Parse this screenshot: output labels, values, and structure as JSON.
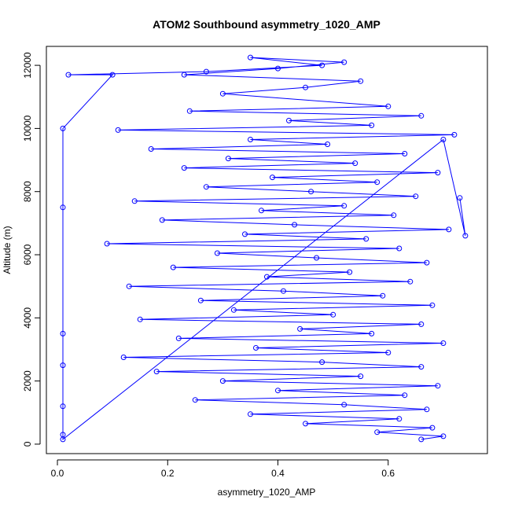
{
  "chart_data": {
    "type": "scatter",
    "title": "ATOM2 Southbound asymmetry_1020_AMP",
    "xlabel": "asymmetry_1020_AMP",
    "ylabel": "Altitude (m)",
    "xlim": [
      -0.02,
      0.78
    ],
    "ylim": [
      -300,
      12600
    ],
    "xticks": [
      0.0,
      0.2,
      0.4,
      0.6
    ],
    "xtick_labels": [
      "0.0",
      "0.2",
      "0.4",
      "0.6"
    ],
    "yticks": [
      0,
      2000,
      4000,
      6000,
      8000,
      10000,
      12000
    ],
    "ytick_labels": [
      "0",
      "2000",
      "4000",
      "6000",
      "8000",
      "10000",
      "12000"
    ],
    "grid": false,
    "marker": "open-circle",
    "connected_lines": true,
    "series_color": "#0000ff",
    "series": [
      {
        "points": [
          [
            0.66,
            150
          ],
          [
            0.7,
            250
          ],
          [
            0.58,
            380
          ],
          [
            0.68,
            520
          ],
          [
            0.45,
            650
          ],
          [
            0.62,
            800
          ],
          [
            0.35,
            950
          ],
          [
            0.67,
            1100
          ],
          [
            0.52,
            1250
          ],
          [
            0.25,
            1400
          ],
          [
            0.63,
            1550
          ],
          [
            0.4,
            1700
          ],
          [
            0.69,
            1850
          ],
          [
            0.3,
            2000
          ],
          [
            0.55,
            2150
          ],
          [
            0.18,
            2300
          ],
          [
            0.66,
            2450
          ],
          [
            0.48,
            2600
          ],
          [
            0.12,
            2750
          ],
          [
            0.6,
            2900
          ],
          [
            0.36,
            3050
          ],
          [
            0.7,
            3200
          ],
          [
            0.22,
            3350
          ],
          [
            0.57,
            3500
          ],
          [
            0.44,
            3650
          ],
          [
            0.66,
            3800
          ],
          [
            0.15,
            3950
          ],
          [
            0.5,
            4100
          ],
          [
            0.32,
            4250
          ],
          [
            0.68,
            4400
          ],
          [
            0.26,
            4550
          ],
          [
            0.59,
            4700
          ],
          [
            0.41,
            4850
          ],
          [
            0.13,
            5000
          ],
          [
            0.64,
            5150
          ],
          [
            0.38,
            5300
          ],
          [
            0.53,
            5450
          ],
          [
            0.21,
            5600
          ],
          [
            0.67,
            5750
          ],
          [
            0.47,
            5900
          ],
          [
            0.29,
            6050
          ],
          [
            0.62,
            6200
          ],
          [
            0.09,
            6350
          ],
          [
            0.56,
            6500
          ],
          [
            0.34,
            6650
          ],
          [
            0.71,
            6800
          ],
          [
            0.43,
            6950
          ],
          [
            0.19,
            7100
          ],
          [
            0.61,
            7250
          ],
          [
            0.37,
            7400
          ],
          [
            0.52,
            7550
          ],
          [
            0.14,
            7700
          ],
          [
            0.65,
            7850
          ],
          [
            0.46,
            8000
          ],
          [
            0.27,
            8150
          ],
          [
            0.58,
            8300
          ],
          [
            0.39,
            8450
          ],
          [
            0.69,
            8600
          ],
          [
            0.23,
            8750
          ],
          [
            0.54,
            8900
          ],
          [
            0.31,
            9050
          ],
          [
            0.63,
            9200
          ],
          [
            0.17,
            9350
          ],
          [
            0.49,
            9500
          ],
          [
            0.35,
            9650
          ],
          [
            0.72,
            9800
          ],
          [
            0.11,
            9950
          ],
          [
            0.57,
            10100
          ],
          [
            0.42,
            10250
          ],
          [
            0.66,
            10400
          ],
          [
            0.24,
            10550
          ],
          [
            0.6,
            10700
          ],
          [
            0.3,
            11100
          ],
          [
            0.45,
            11300
          ],
          [
            0.55,
            11500
          ],
          [
            0.23,
            11700
          ],
          [
            0.4,
            11900
          ],
          [
            0.52,
            12100
          ],
          [
            0.35,
            12250
          ],
          [
            0.48,
            12000
          ],
          [
            0.27,
            11800
          ],
          [
            0.02,
            11700
          ],
          [
            0.1,
            11700
          ],
          [
            0.01,
            10000
          ],
          [
            0.01,
            7500
          ],
          [
            0.01,
            3500
          ],
          [
            0.01,
            2500
          ],
          [
            0.01,
            1200
          ],
          [
            0.01,
            300
          ],
          [
            0.01,
            150
          ],
          [
            0.7,
            9650
          ],
          [
            0.74,
            6600
          ],
          [
            0.73,
            7800
          ]
        ]
      }
    ]
  }
}
